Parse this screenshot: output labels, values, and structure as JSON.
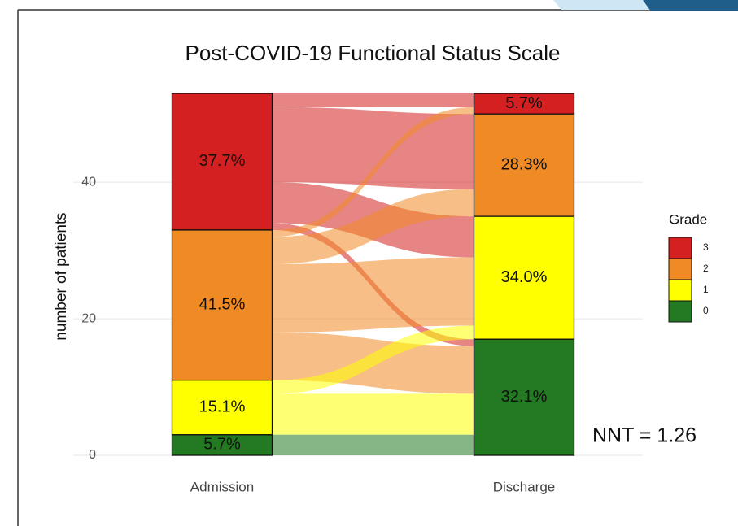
{
  "chart_data": {
    "type": "alluvial",
    "title": "Post-COVID-19 Functional Status Scale",
    "y_label": "number of patients",
    "ylim": [
      0,
      53
    ],
    "yticks": [
      0,
      20,
      40
    ],
    "grid": true,
    "legend_title": "Grade",
    "legend_position": "right",
    "annotation": "NNT = 1.26",
    "grades": [
      {
        "name": "3",
        "color": "#d42020"
      },
      {
        "name": "2",
        "color": "#f08a24"
      },
      {
        "name": "1",
        "color": "#ffff00"
      },
      {
        "name": "0",
        "color": "#237a23"
      }
    ],
    "axes": [
      {
        "name": "Admission",
        "percents": [
          37.7,
          41.5,
          15.1,
          5.7
        ],
        "value_labels": [
          "37.7%",
          "41.5%",
          "15.1%",
          "5.7%"
        ]
      },
      {
        "name": "Discharge",
        "percents": [
          5.7,
          28.3,
          34.0,
          32.1
        ],
        "value_labels": [
          "5.7%",
          "28.3%",
          "34.0%",
          "32.1%"
        ]
      }
    ],
    "flows": [
      {
        "from": "3",
        "to": "3",
        "value": 2
      },
      {
        "from": "3",
        "to": "2",
        "value": 11
      },
      {
        "from": "3",
        "to": "1",
        "value": 6
      },
      {
        "from": "3",
        "to": "0",
        "value": 1
      },
      {
        "from": "2",
        "to": "3",
        "value": 1
      },
      {
        "from": "2",
        "to": "2",
        "value": 4
      },
      {
        "from": "2",
        "to": "1",
        "value": 10
      },
      {
        "from": "2",
        "to": "0",
        "value": 7
      },
      {
        "from": "1",
        "to": "1",
        "value": 2
      },
      {
        "from": "1",
        "to": "0",
        "value": 6
      },
      {
        "from": "0",
        "to": "0",
        "value": 3
      }
    ]
  }
}
